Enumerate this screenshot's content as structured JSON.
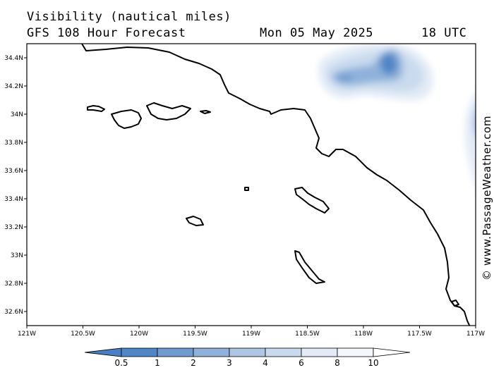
{
  "header": {
    "title": "Visibility (nautical miles)",
    "subtitle": "GFS 108 Hour Forecast",
    "date": "Mon 05 May 2025",
    "time": "18 UTC"
  },
  "credit": "© www.PassageWeather.com",
  "map": {
    "lon_range": [
      -121,
      -117
    ],
    "lat_range": [
      32.5,
      34.5
    ],
    "lon_ticks": [
      "121W",
      "120.5W",
      "120W",
      "119.5W",
      "119W",
      "118.5W",
      "118W",
      "117.5W",
      "117W"
    ],
    "lat_ticks": [
      "34.4N",
      "34.2N",
      "34N",
      "33.8N",
      "33.6N",
      "33.4N",
      "33.2N",
      "33N",
      "32.8N",
      "32.6N"
    ]
  },
  "legend": {
    "labels": [
      "0.5",
      "1",
      "2",
      "3",
      "4",
      "6",
      "8",
      "10"
    ],
    "colors": [
      "#4a7fc4",
      "#4f86c6",
      "#6f9bd0",
      "#8fb1da",
      "#adc6e4",
      "#c9daee",
      "#e2ebf6",
      "#f4f8fc",
      "#ffffff"
    ]
  }
}
